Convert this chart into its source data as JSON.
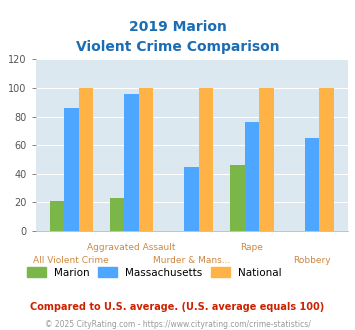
{
  "title_line1": "2019 Marion",
  "title_line2": "Violent Crime Comparison",
  "categories": [
    "All Violent Crime",
    "Aggravated Assault",
    "Murder & Mans...",
    "Rape",
    "Robbery"
  ],
  "x_labels_top": [
    "",
    "Aggravated Assault",
    "",
    "Rape",
    ""
  ],
  "x_labels_bottom": [
    "All Violent Crime",
    "",
    "Murder & Mans...",
    "",
    "Robbery"
  ],
  "series": {
    "Marion": [
      21,
      23,
      0,
      46,
      0
    ],
    "Massachusetts": [
      86,
      96,
      45,
      76,
      65
    ],
    "National": [
      100,
      100,
      100,
      100,
      100
    ]
  },
  "colors": {
    "Marion": "#7ab648",
    "Massachusetts": "#4da6ff",
    "National": "#ffb347"
  },
  "ylim": [
    0,
    120
  ],
  "yticks": [
    0,
    20,
    40,
    60,
    80,
    100,
    120
  ],
  "background_color": "#dce8f0",
  "title_color": "#1a6db5",
  "xlabel_color_top": "#cc8844",
  "xlabel_color_bottom": "#cc8844",
  "footnote1": "Compared to U.S. average. (U.S. average equals 100)",
  "footnote2": "© 2025 CityRating.com - https://www.cityrating.com/crime-statistics/",
  "footnote1_color": "#cc2200",
  "footnote2_color": "#999999",
  "footnote2_url_color": "#4488cc"
}
